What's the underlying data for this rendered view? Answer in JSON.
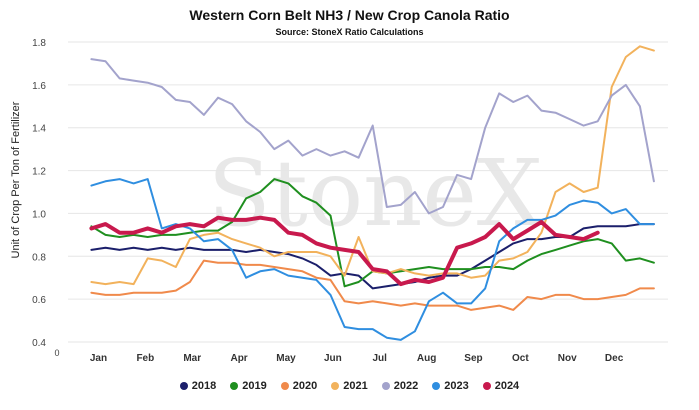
{
  "chart_data": {
    "type": "line",
    "title": "Western Corn Belt NH3 / New Crop Canola Ratio",
    "subtitle": "Source: StoneX Ratio Calculations",
    "ylabel": "Unit of Crop Per Ton of Fertilizer",
    "ylim": [
      0.4,
      1.8
    ],
    "yticks": [
      "0.4",
      "0.6",
      "0.8",
      "1.0",
      "1.2",
      "1.4",
      "1.6",
      "1.8"
    ],
    "x_origin_label": "0",
    "categories": [
      "Jan",
      "Feb",
      "Mar",
      "Apr",
      "May",
      "Jun",
      "Jul",
      "Aug",
      "Sep",
      "Oct",
      "Nov",
      "Dec"
    ],
    "grid": true,
    "watermark": "StoneX",
    "legend_position": "bottom",
    "series": [
      {
        "name": "2018",
        "color": "#1b1f6b",
        "width": 2,
        "x": [
          0.0,
          0.3,
          0.6,
          0.9,
          1.2,
          1.5,
          1.8,
          2.1,
          2.4,
          2.7,
          3.0,
          3.3,
          3.6,
          3.9,
          4.2,
          4.5,
          4.8,
          5.1,
          5.4,
          5.7,
          6.0,
          6.3,
          6.6,
          6.9,
          7.2,
          7.5,
          7.8,
          8.1,
          8.4,
          8.7,
          9.0,
          9.3,
          9.6,
          9.9,
          10.2,
          10.5,
          10.8,
          11.1,
          11.4,
          11.7,
          12.0
        ],
        "y": [
          0.83,
          0.84,
          0.83,
          0.84,
          0.83,
          0.84,
          0.83,
          0.84,
          0.83,
          0.83,
          0.83,
          0.82,
          0.83,
          0.82,
          0.81,
          0.79,
          0.76,
          0.71,
          0.72,
          0.71,
          0.65,
          0.66,
          0.67,
          0.68,
          0.7,
          0.71,
          0.71,
          0.74,
          0.78,
          0.82,
          0.86,
          0.88,
          0.88,
          0.89,
          0.89,
          0.93,
          0.94,
          0.94,
          0.94,
          0.95,
          0.95
        ]
      },
      {
        "name": "2019",
        "color": "#1f8f1f",
        "width": 2,
        "x": [
          0.0,
          0.3,
          0.6,
          0.9,
          1.2,
          1.5,
          1.8,
          2.1,
          2.4,
          2.7,
          3.0,
          3.3,
          3.6,
          3.9,
          4.2,
          4.5,
          4.8,
          5.1,
          5.4,
          5.7,
          6.0,
          6.3,
          6.6,
          6.9,
          7.2,
          7.5,
          7.8,
          8.1,
          8.4,
          8.7,
          9.0,
          9.3,
          9.6,
          9.9,
          10.2,
          10.5,
          10.8,
          11.1,
          11.4,
          11.7,
          12.0
        ],
        "y": [
          0.94,
          0.9,
          0.89,
          0.9,
          0.89,
          0.9,
          0.9,
          0.91,
          0.92,
          0.92,
          0.96,
          1.07,
          1.1,
          1.16,
          1.14,
          1.08,
          1.05,
          0.99,
          0.66,
          0.68,
          0.73,
          0.72,
          0.73,
          0.74,
          0.75,
          0.74,
          0.74,
          0.74,
          0.75,
          0.75,
          0.74,
          0.78,
          0.81,
          0.83,
          0.85,
          0.87,
          0.88,
          0.86,
          0.78,
          0.79,
          0.77
        ]
      },
      {
        "name": "2020",
        "color": "#f08a4b",
        "width": 2,
        "x": [
          0.0,
          0.3,
          0.6,
          0.9,
          1.2,
          1.5,
          1.8,
          2.1,
          2.4,
          2.7,
          3.0,
          3.3,
          3.6,
          3.9,
          4.2,
          4.5,
          4.8,
          5.1,
          5.4,
          5.7,
          6.0,
          6.3,
          6.6,
          6.9,
          7.2,
          7.5,
          7.8,
          8.1,
          8.4,
          8.7,
          9.0,
          9.3,
          9.6,
          9.9,
          10.2,
          10.5,
          10.8,
          11.1,
          11.4,
          11.7,
          12.0
        ],
        "y": [
          0.63,
          0.62,
          0.62,
          0.63,
          0.63,
          0.63,
          0.64,
          0.68,
          0.78,
          0.77,
          0.77,
          0.76,
          0.76,
          0.75,
          0.74,
          0.73,
          0.7,
          0.69,
          0.59,
          0.58,
          0.59,
          0.58,
          0.57,
          0.58,
          0.57,
          0.57,
          0.57,
          0.55,
          0.56,
          0.57,
          0.55,
          0.61,
          0.6,
          0.62,
          0.62,
          0.6,
          0.6,
          0.61,
          0.62,
          0.65,
          0.65
        ]
      },
      {
        "name": "2021",
        "color": "#f2b25c",
        "width": 2,
        "x": [
          0.0,
          0.3,
          0.6,
          0.9,
          1.2,
          1.5,
          1.8,
          2.1,
          2.4,
          2.7,
          3.0,
          3.3,
          3.6,
          3.9,
          4.2,
          4.5,
          4.8,
          5.1,
          5.4,
          5.7,
          6.0,
          6.3,
          6.6,
          6.9,
          7.2,
          7.5,
          7.8,
          8.1,
          8.4,
          8.7,
          9.0,
          9.3,
          9.6,
          9.9,
          10.2,
          10.5,
          10.8,
          11.1,
          11.4,
          11.7,
          12.0
        ],
        "y": [
          0.68,
          0.67,
          0.68,
          0.67,
          0.79,
          0.78,
          0.75,
          0.88,
          0.9,
          0.91,
          0.88,
          0.86,
          0.84,
          0.8,
          0.82,
          0.82,
          0.82,
          0.8,
          0.71,
          0.89,
          0.73,
          0.72,
          0.74,
          0.72,
          0.71,
          0.72,
          0.72,
          0.7,
          0.71,
          0.78,
          0.79,
          0.82,
          0.91,
          1.1,
          1.14,
          1.1,
          1.12,
          1.59,
          1.73,
          1.78,
          1.76
        ]
      },
      {
        "name": "2022",
        "color": "#a3a3cc",
        "width": 2,
        "x": [
          0.0,
          0.3,
          0.6,
          0.9,
          1.2,
          1.5,
          1.8,
          2.1,
          2.4,
          2.7,
          3.0,
          3.3,
          3.6,
          3.9,
          4.2,
          4.5,
          4.8,
          5.1,
          5.4,
          5.7,
          6.0,
          6.3,
          6.6,
          6.9,
          7.2,
          7.5,
          7.8,
          8.1,
          8.4,
          8.7,
          9.0,
          9.3,
          9.6,
          9.9,
          10.2,
          10.5,
          10.8,
          11.1,
          11.4,
          11.7,
          12.0
        ],
        "y": [
          1.72,
          1.71,
          1.63,
          1.62,
          1.61,
          1.59,
          1.53,
          1.52,
          1.46,
          1.54,
          1.51,
          1.43,
          1.38,
          1.3,
          1.34,
          1.27,
          1.3,
          1.27,
          1.29,
          1.26,
          1.41,
          1.03,
          1.04,
          1.1,
          1.0,
          1.03,
          1.18,
          1.16,
          1.4,
          1.56,
          1.52,
          1.55,
          1.48,
          1.47,
          1.44,
          1.41,
          1.43,
          1.55,
          1.6,
          1.5,
          1.15
        ]
      },
      {
        "name": "2023",
        "color": "#2f8ee0",
        "width": 2,
        "x": [
          0.0,
          0.3,
          0.6,
          0.9,
          1.2,
          1.5,
          1.8,
          2.1,
          2.4,
          2.7,
          3.0,
          3.3,
          3.6,
          3.9,
          4.2,
          4.5,
          4.8,
          5.1,
          5.4,
          5.7,
          6.0,
          6.3,
          6.6,
          6.9,
          7.2,
          7.5,
          7.8,
          8.1,
          8.4,
          8.7,
          9.0,
          9.3,
          9.6,
          9.9,
          10.2,
          10.5,
          10.8,
          11.1,
          11.4,
          11.7,
          12.0
        ],
        "y": [
          1.13,
          1.15,
          1.16,
          1.14,
          1.16,
          0.93,
          0.95,
          0.93,
          0.87,
          0.88,
          0.83,
          0.7,
          0.73,
          0.74,
          0.71,
          0.7,
          0.69,
          0.62,
          0.47,
          0.46,
          0.46,
          0.42,
          0.41,
          0.45,
          0.59,
          0.63,
          0.58,
          0.58,
          0.65,
          0.87,
          0.93,
          0.97,
          0.97,
          0.99,
          1.04,
          1.06,
          1.05,
          1.0,
          1.02,
          0.95,
          0.95
        ]
      },
      {
        "name": "2024",
        "color": "#c8194d",
        "width": 4,
        "x": [
          0.0,
          0.3,
          0.6,
          0.9,
          1.2,
          1.5,
          1.8,
          2.1,
          2.4,
          2.7,
          3.0,
          3.3,
          3.6,
          3.9,
          4.2,
          4.5,
          4.8,
          5.1,
          5.4,
          5.7,
          6.0,
          6.3,
          6.6,
          6.9,
          7.2,
          7.5,
          7.8,
          8.1,
          8.4,
          8.7,
          9.0,
          9.3,
          9.6,
          9.9,
          10.2,
          10.5,
          10.8
        ],
        "y": [
          0.93,
          0.95,
          0.91,
          0.91,
          0.93,
          0.91,
          0.94,
          0.95,
          0.94,
          0.98,
          0.97,
          0.97,
          0.98,
          0.97,
          0.91,
          0.9,
          0.86,
          0.84,
          0.83,
          0.82,
          0.74,
          0.73,
          0.67,
          0.69,
          0.68,
          0.7,
          0.84,
          0.86,
          0.89,
          0.95,
          0.88,
          0.92,
          0.96,
          0.9,
          0.89,
          0.88,
          0.91
        ]
      }
    ]
  }
}
